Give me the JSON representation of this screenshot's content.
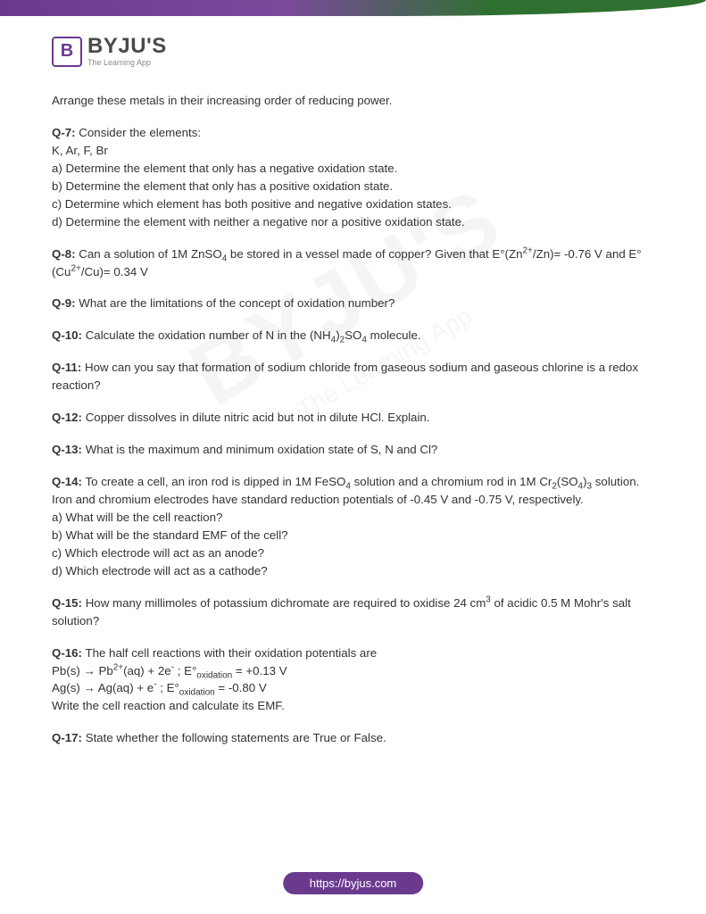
{
  "logo": {
    "letter": "B",
    "main": "BYJU'S",
    "sub": "The Learning App"
  },
  "watermark": {
    "main": "BYJU'S",
    "sub": "The Learning App"
  },
  "intro": "Arrange these metals in their increasing order of reducing power.",
  "questions": [
    {
      "label": "Q-7:",
      "html": "Consider the elements:<br>K, Ar, F, Br<br>a) Determine the element that only has a negative oxidation state.<br>b) Determine the element that only has a positive oxidation state.<br>c) Determine which element has both positive and negative oxidation states.<br>d) Determine the element with neither a negative nor a positive oxidation state."
    },
    {
      "label": "Q-8:",
      "html": "Can a solution of 1M ZnSO<sub>4</sub> be stored in a vessel made of copper? Given that E°(Zn<sup>2+</sup>/Zn)= -0.76 V and E°(Cu<sup>2+</sup>/Cu)= 0.34 V"
    },
    {
      "label": "Q-9:",
      "html": "What are the limitations of the concept of oxidation number?"
    },
    {
      "label": "Q-10:",
      "html": "Calculate the oxidation number of N in the (NH<sub>4</sub>)<sub>2</sub>SO<sub>4</sub> molecule."
    },
    {
      "label": "Q-11:",
      "html": "How can you say that formation of sodium chloride from gaseous sodium and gaseous chlorine is a redox reaction?"
    },
    {
      "label": "Q-12:",
      "html": "Copper dissolves in dilute nitric acid but not in dilute HCl. Explain."
    },
    {
      "label": "Q-13:",
      "html": "What is the maximum and minimum oxidation state of S, N and Cl?"
    },
    {
      "label": "Q-14:",
      "html": "To create a cell, an iron rod is dipped in 1M FeSO<sub>4</sub> solution and a chromium rod in 1M Cr<sub>2</sub>(SO<sub>4</sub>)<sub>3</sub> solution. Iron and chromium electrodes have standard reduction potentials of -0.45 V and -0.75 V, respectively.<br>a) What will be the cell reaction?<br>b) What will be the standard EMF of the cell?<br>c) Which electrode will act as an anode?<br>d) Which electrode will act as a cathode?"
    },
    {
      "label": "Q-15:",
      "html": "How many millimoles of potassium dichromate are required to oxidise 24 cm<sup>3</sup> of acidic 0.5 M Mohr's salt solution?"
    },
    {
      "label": "Q-16:",
      "html": "The half cell reactions with their oxidation potentials are<br>Pb(s) → Pb<sup>2+</sup>(aq) + 2e<sup>-</sup> ; E°<sub>oxidation</sub> = +0.13 V<br>Ag(s)  → Ag(aq) + e<sup>-</sup> ; E°<sub>oxidation</sub> = -0.80 V<br>Write the cell reaction and calculate its EMF."
    },
    {
      "label": "Q-17:",
      "html": "State whether the following statements are True or False."
    }
  ],
  "footer_url": "https://byjus.com",
  "colors": {
    "brand_purple": "#6b3a8f",
    "text": "#333333",
    "logo_gray": "#4a4a4a"
  }
}
